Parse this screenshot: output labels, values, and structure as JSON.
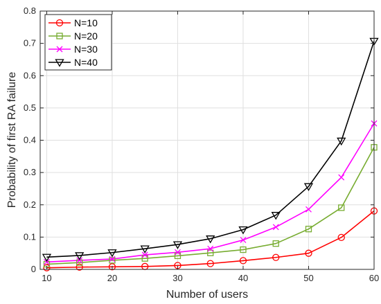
{
  "chart_data": {
    "type": "line",
    "title": "",
    "xlabel": "Number of users",
    "ylabel": "Probability of first RA failure",
    "xlim": [
      9,
      60
    ],
    "ylim": [
      0,
      0.8
    ],
    "xticks": [
      10,
      20,
      30,
      40,
      50,
      60
    ],
    "yticks": [
      0,
      0.1,
      0.2,
      0.3,
      0.4,
      0.5,
      0.6,
      0.7,
      0.8
    ],
    "xtick_labels": [
      "10",
      "20",
      "30",
      "40",
      "50",
      "60"
    ],
    "ytick_labels": [
      "0",
      "0.1",
      "0.2",
      "0.3",
      "0.4",
      "0.5",
      "0.6",
      "0.7",
      "0.8"
    ],
    "grid": true,
    "legend_position": "top-left",
    "x": [
      10,
      15,
      20,
      25,
      30,
      35,
      40,
      45,
      50,
      55,
      60
    ],
    "series": [
      {
        "name": "N=10",
        "color": "#ff0000",
        "marker": "circle",
        "values": [
          0.005,
          0.007,
          0.008,
          0.009,
          0.012,
          0.018,
          0.027,
          0.037,
          0.05,
          0.099,
          0.181
        ]
      },
      {
        "name": "N=20",
        "color": "#77ac30",
        "marker": "square",
        "values": [
          0.016,
          0.021,
          0.028,
          0.034,
          0.042,
          0.051,
          0.061,
          0.08,
          0.125,
          0.191,
          0.378
        ]
      },
      {
        "name": "N=30",
        "color": "#ff00ff",
        "marker": "x",
        "values": [
          0.023,
          0.028,
          0.032,
          0.045,
          0.053,
          0.064,
          0.091,
          0.131,
          0.186,
          0.285,
          0.452
        ]
      },
      {
        "name": "N=40",
        "color": "#000000",
        "marker": "triangle-down",
        "values": [
          0.038,
          0.043,
          0.052,
          0.064,
          0.077,
          0.095,
          0.123,
          0.168,
          0.257,
          0.398,
          0.707
        ]
      }
    ]
  }
}
